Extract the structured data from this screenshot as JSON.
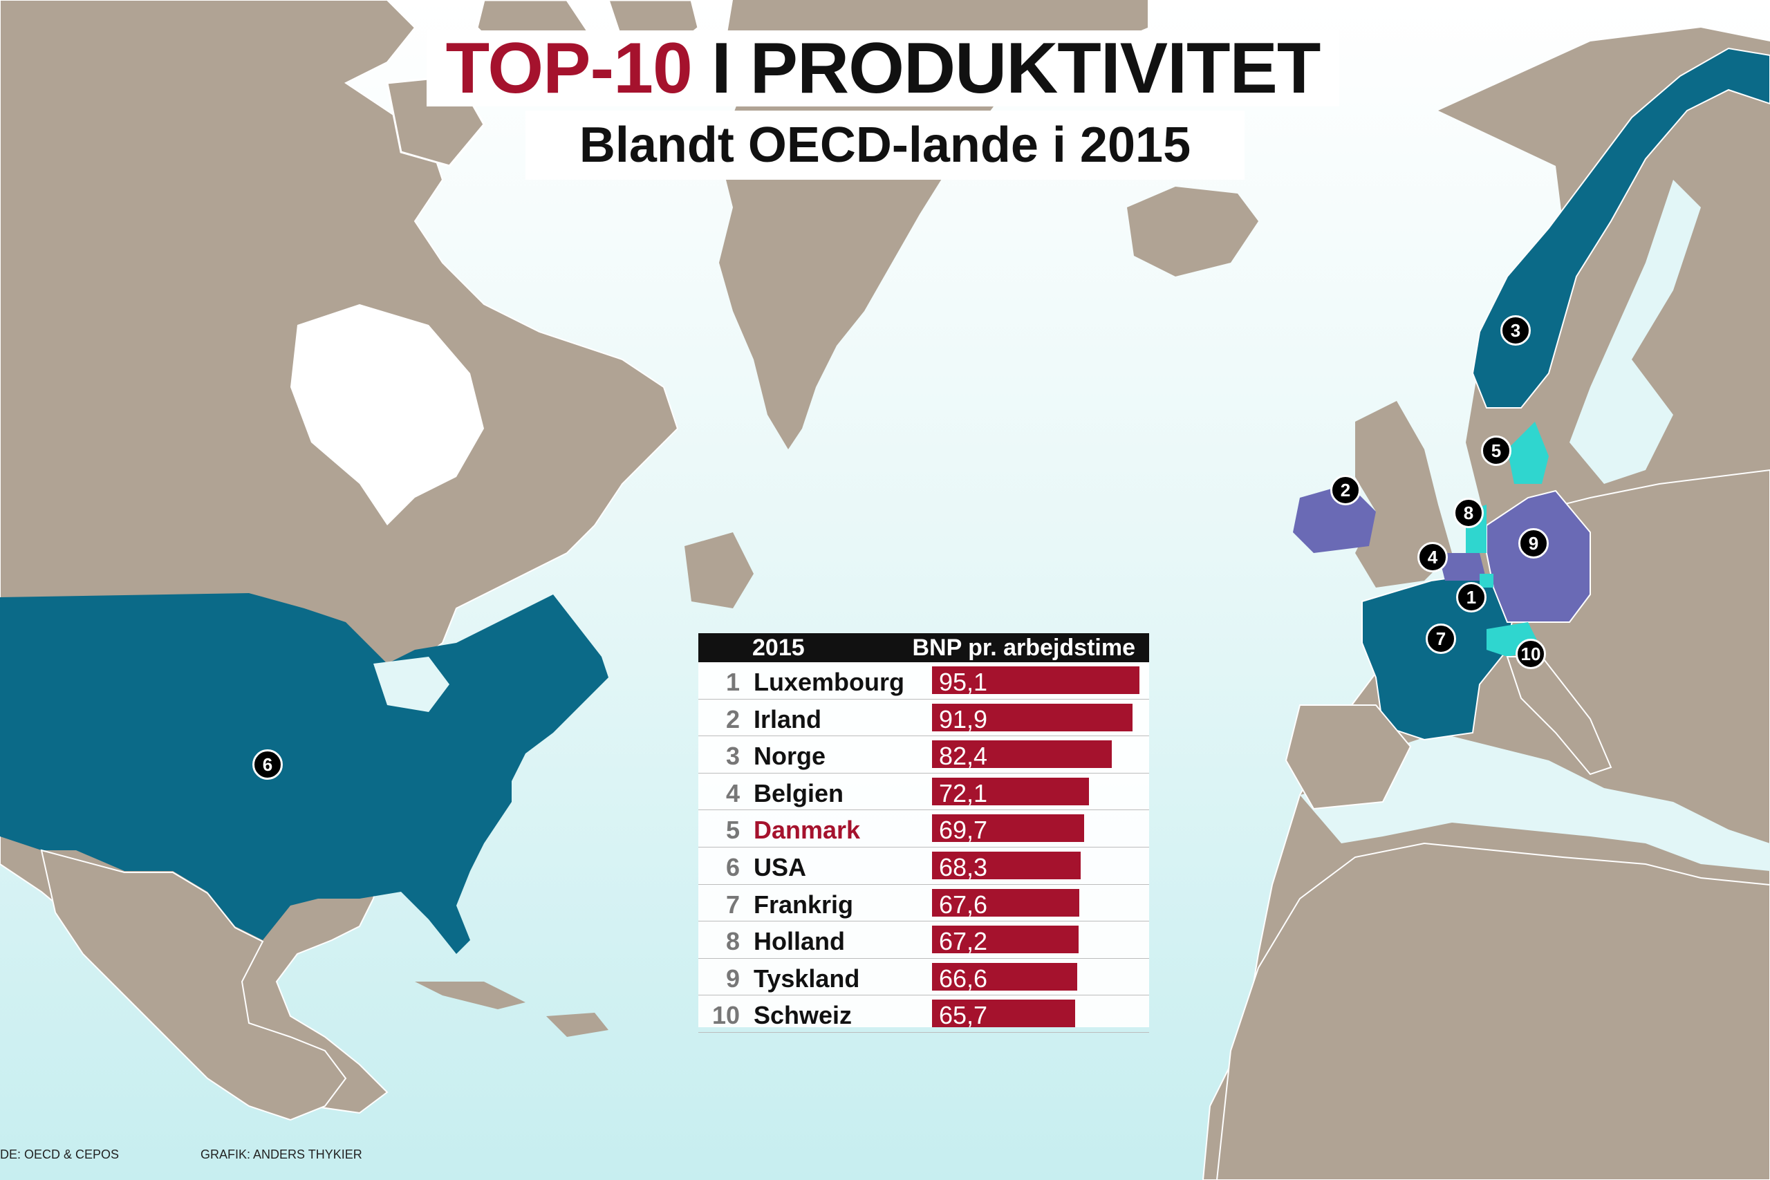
{
  "title": {
    "accent": "TOP-10",
    "rest": "I PRODUKTIVITET"
  },
  "subtitle": "Blandt OECD-lande i 2015",
  "table": {
    "header_year": "2015",
    "header_value": "BNP pr. arbejdstime",
    "rows": [
      {
        "rank": "1",
        "country": "Luxembourg",
        "value": "95,1"
      },
      {
        "rank": "2",
        "country": "Irland",
        "value": "91,9"
      },
      {
        "rank": "3",
        "country": "Norge",
        "value": "82,4"
      },
      {
        "rank": "4",
        "country": "Belgien",
        "value": "72,1"
      },
      {
        "rank": "5",
        "country": "Danmark",
        "value": "69,7"
      },
      {
        "rank": "6",
        "country": "USA",
        "value": "68,3"
      },
      {
        "rank": "7",
        "country": "Frankrig",
        "value": "67,6"
      },
      {
        "rank": "8",
        "country": "Holland",
        "value": "67,2"
      },
      {
        "rank": "9",
        "country": "Tyskland",
        "value": "66,6"
      },
      {
        "rank": "10",
        "country": "Schweiz",
        "value": "65,7"
      }
    ],
    "values_numeric": [
      95.1,
      91.9,
      82.4,
      72.1,
      69.7,
      68.3,
      67.6,
      67.2,
      66.6,
      65.7
    ],
    "value_max": 95.1,
    "highlight_rank": "5"
  },
  "markers": [
    "1",
    "2",
    "3",
    "4",
    "5",
    "6",
    "7",
    "8",
    "9",
    "10"
  ],
  "source": "DE: OECD & CEPOS",
  "credit": "GRAFIK: ANDERS THYKIER",
  "colors": {
    "accent_red": "#a5122d",
    "land": "#b0a394",
    "ocean": "#e2f6f7",
    "country_teal": "#0b6a88",
    "country_purple": "#6a6ab5",
    "country_cyan": "#2fd6cf"
  }
}
